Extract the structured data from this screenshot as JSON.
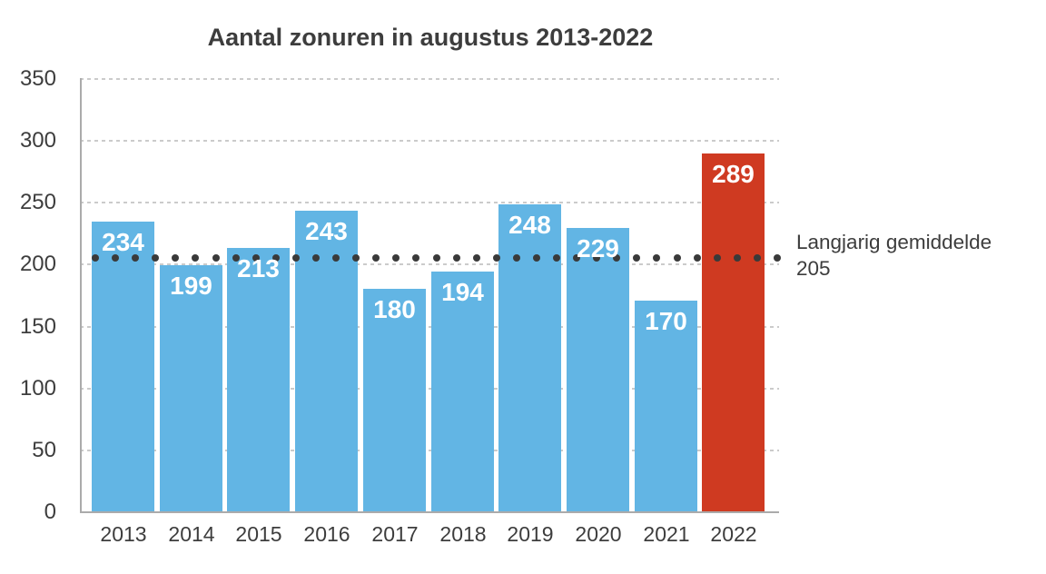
{
  "chart_data": {
    "type": "bar",
    "title": "Aantal zonuren in augustus 2013-2022",
    "categories": [
      "2013",
      "2014",
      "2015",
      "2016",
      "2017",
      "2018",
      "2019",
      "2020",
      "2021",
      "2022"
    ],
    "values": [
      234,
      199,
      213,
      243,
      180,
      194,
      248,
      229,
      170,
      289
    ],
    "highlight_category": "2022",
    "average_line": {
      "value": 205,
      "label": "Langjarig gemiddelde",
      "value_text": "205",
      "style": "dotted",
      "dot_color": "#3a3a3a"
    },
    "ylim": [
      0,
      350
    ],
    "yticks": [
      0,
      50,
      100,
      150,
      200,
      250,
      300,
      350
    ],
    "xlabel": "",
    "ylabel": "",
    "grid": "horizontal-dashed",
    "legend": "none",
    "colors": {
      "bar": "#62b5e4",
      "highlight": "#cf3a21",
      "value_label": "#ffffff",
      "grid": "#cbcbcb",
      "axis": "#ababab",
      "text": "#3d3d3d"
    }
  }
}
